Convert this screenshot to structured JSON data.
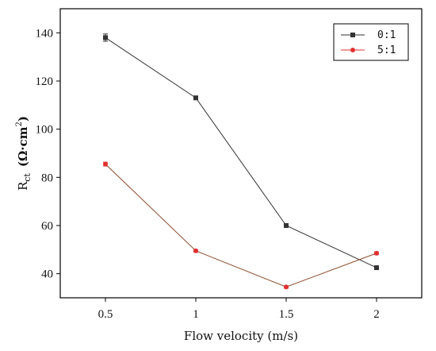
{
  "chart_data": {
    "type": "line",
    "xlabel": "Flow velocity (m/s)",
    "ylabel": "Rct (Ω·cm²)",
    "ylabel_parts": {
      "main": "R",
      "sub": "ct",
      "unit_open": "(Ω·cm",
      "unit_sup": "2",
      "unit_close": ")"
    },
    "x": [
      0.5,
      1,
      1.5,
      2
    ],
    "x_tick_labels": [
      "0.5",
      "1",
      "1.5",
      "2"
    ],
    "xlim": [
      0.25,
      2.25
    ],
    "ylim": [
      30,
      150
    ],
    "y_ticks": [
      40,
      60,
      80,
      100,
      120,
      140
    ],
    "grid": false,
    "legend_position": "top-right",
    "series": [
      {
        "name": "0:1",
        "color": "#333333",
        "marker": "square",
        "values": [
          138,
          113,
          60,
          42.5
        ],
        "errors": [
          1.5,
          0.5,
          0.5,
          0.5
        ]
      },
      {
        "name": "5:1",
        "color": "#e03030",
        "line_color": "#8b4a2b",
        "marker": "circle",
        "values": [
          85.5,
          49.5,
          34.5,
          48.5
        ],
        "errors": [
          0.8,
          0.5,
          0.5,
          0.6
        ]
      }
    ]
  }
}
